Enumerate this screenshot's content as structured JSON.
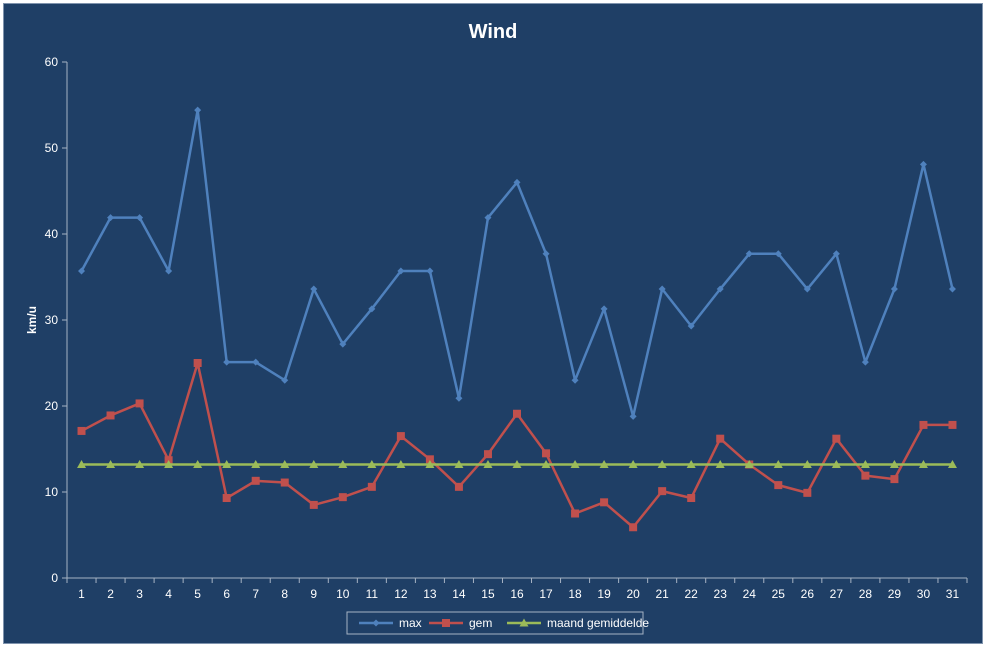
{
  "chart_data": {
    "type": "line",
    "title": "Wind",
    "xlabel": "",
    "ylabel": "km/u",
    "ylim": [
      0,
      60
    ],
    "yticks": [
      0,
      10,
      20,
      30,
      40,
      50,
      60
    ],
    "grid": false,
    "legend_position": "bottom",
    "categories": [
      "1",
      "2",
      "3",
      "4",
      "5",
      "6",
      "7",
      "8",
      "9",
      "10",
      "11",
      "12",
      "13",
      "14",
      "15",
      "16",
      "17",
      "18",
      "19",
      "20",
      "21",
      "22",
      "23",
      "24",
      "25",
      "26",
      "27",
      "28",
      "29",
      "30",
      "31"
    ],
    "series": [
      {
        "name": "max",
        "color": "#4f81bd",
        "marker": "diamond",
        "values": [
          35.7,
          41.9,
          41.9,
          35.7,
          54.4,
          25.1,
          25.1,
          23.0,
          33.6,
          27.2,
          31.3,
          35.7,
          35.7,
          20.9,
          41.9,
          46.0,
          37.7,
          23.0,
          31.3,
          18.8,
          33.6,
          29.3,
          33.6,
          37.7,
          37.7,
          33.6,
          37.7,
          25.1,
          33.6,
          48.1,
          33.6
        ]
      },
      {
        "name": "gem",
        "color": "#c0504d",
        "marker": "square",
        "values": [
          17.1,
          18.9,
          20.3,
          13.7,
          25.0,
          9.3,
          11.3,
          11.1,
          8.5,
          9.4,
          10.6,
          16.5,
          13.8,
          10.6,
          14.4,
          19.1,
          14.5,
          7.5,
          8.8,
          5.9,
          10.1,
          9.3,
          16.2,
          13.2,
          10.8,
          9.9,
          16.2,
          11.9,
          11.5,
          17.8,
          17.8
        ]
      },
      {
        "name": "maand gemiddelde",
        "color": "#9bbb59",
        "marker": "triangle",
        "values": [
          13.2,
          13.2,
          13.2,
          13.2,
          13.2,
          13.2,
          13.2,
          13.2,
          13.2,
          13.2,
          13.2,
          13.2,
          13.2,
          13.2,
          13.2,
          13.2,
          13.2,
          13.2,
          13.2,
          13.2,
          13.2,
          13.2,
          13.2,
          13.2,
          13.2,
          13.2,
          13.2,
          13.2,
          13.2,
          13.2,
          13.2
        ]
      }
    ]
  }
}
